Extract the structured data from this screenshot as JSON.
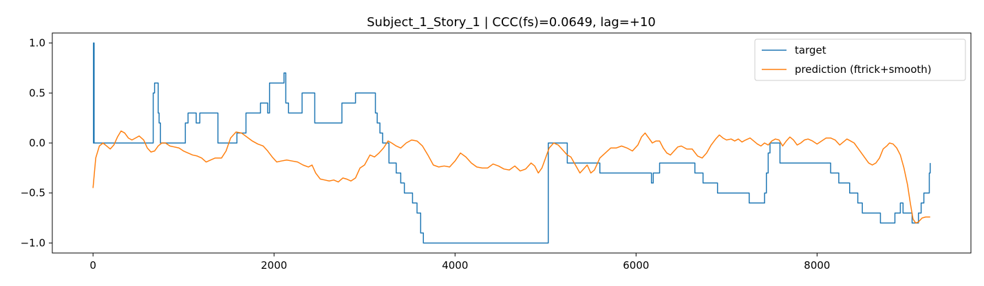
{
  "chart_data": {
    "type": "line",
    "title": "Subject_1_Story_1 | CCC(fs)=0.0649, lag=+10",
    "xlabel": "",
    "ylabel": "",
    "xlim": [
      -450,
      9700
    ],
    "ylim": [
      -1.1,
      1.1
    ],
    "x_ticks": [
      0,
      2000,
      4000,
      6000,
      8000
    ],
    "y_ticks": [
      1.0,
      0.5,
      0.0,
      -0.5,
      -1.0
    ],
    "x_tick_labels": [
      "0",
      "2000",
      "4000",
      "6000",
      "8000"
    ],
    "y_tick_labels": [
      "1.0",
      "0.5",
      "0.0",
      "−0.5",
      "−1.0"
    ],
    "grid": false,
    "legend_position": "top-right",
    "series": [
      {
        "name": "target",
        "color": "#1f77b4",
        "step": true,
        "points": [
          [
            0,
            0.0
          ],
          [
            5,
            1.0
          ],
          [
            12,
            0.0
          ],
          [
            660,
            0.0
          ],
          [
            665,
            0.5
          ],
          [
            680,
            0.6
          ],
          [
            720,
            0.3
          ],
          [
            730,
            0.2
          ],
          [
            745,
            0.0
          ],
          [
            1010,
            0.0
          ],
          [
            1020,
            0.2
          ],
          [
            1050,
            0.3
          ],
          [
            1140,
            0.2
          ],
          [
            1180,
            0.3
          ],
          [
            1380,
            0.0
          ],
          [
            1590,
            0.1
          ],
          [
            1690,
            0.3
          ],
          [
            1850,
            0.4
          ],
          [
            1930,
            0.3
          ],
          [
            1950,
            0.6
          ],
          [
            2110,
            0.7
          ],
          [
            2130,
            0.4
          ],
          [
            2160,
            0.3
          ],
          [
            2310,
            0.5
          ],
          [
            2450,
            0.2
          ],
          [
            2750,
            0.4
          ],
          [
            2900,
            0.5
          ],
          [
            3120,
            0.3
          ],
          [
            3140,
            0.2
          ],
          [
            3170,
            0.1
          ],
          [
            3200,
            0.0
          ],
          [
            3270,
            -0.2
          ],
          [
            3350,
            -0.3
          ],
          [
            3400,
            -0.4
          ],
          [
            3440,
            -0.5
          ],
          [
            3530,
            -0.6
          ],
          [
            3580,
            -0.7
          ],
          [
            3620,
            -0.9
          ],
          [
            3650,
            -1.0
          ],
          [
            5030,
            0.0
          ],
          [
            5240,
            -0.2
          ],
          [
            5600,
            -0.3
          ],
          [
            6170,
            -0.4
          ],
          [
            6190,
            -0.3
          ],
          [
            6260,
            -0.2
          ],
          [
            6650,
            -0.3
          ],
          [
            6740,
            -0.4
          ],
          [
            6900,
            -0.5
          ],
          [
            7250,
            -0.6
          ],
          [
            7420,
            -0.5
          ],
          [
            7440,
            -0.3
          ],
          [
            7460,
            -0.1
          ],
          [
            7480,
            0.0
          ],
          [
            7590,
            -0.2
          ],
          [
            8150,
            -0.3
          ],
          [
            8240,
            -0.4
          ],
          [
            8360,
            -0.5
          ],
          [
            8450,
            -0.6
          ],
          [
            8500,
            -0.7
          ],
          [
            8700,
            -0.8
          ],
          [
            8860,
            -0.7
          ],
          [
            8920,
            -0.6
          ],
          [
            8950,
            -0.7
          ],
          [
            9050,
            -0.8
          ],
          [
            9120,
            -0.7
          ],
          [
            9150,
            -0.6
          ],
          [
            9180,
            -0.5
          ],
          [
            9240,
            -0.3
          ],
          [
            9250,
            -0.2
          ]
        ]
      },
      {
        "name": "prediction (ftrick+smooth)",
        "color": "#ff7f0e",
        "step": false,
        "points": [
          [
            0,
            -0.45
          ],
          [
            30,
            -0.15
          ],
          [
            70,
            -0.03
          ],
          [
            110,
            0.0
          ],
          [
            150,
            -0.03
          ],
          [
            190,
            -0.06
          ],
          [
            230,
            -0.02
          ],
          [
            270,
            0.06
          ],
          [
            310,
            0.12
          ],
          [
            350,
            0.1
          ],
          [
            390,
            0.05
          ],
          [
            430,
            0.03
          ],
          [
            470,
            0.05
          ],
          [
            510,
            0.07
          ],
          [
            560,
            0.03
          ],
          [
            600,
            -0.05
          ],
          [
            640,
            -0.09
          ],
          [
            680,
            -0.08
          ],
          [
            720,
            -0.03
          ],
          [
            760,
            0.0
          ],
          [
            800,
            0.0
          ],
          [
            850,
            -0.03
          ],
          [
            900,
            -0.04
          ],
          [
            950,
            -0.05
          ],
          [
            1000,
            -0.08
          ],
          [
            1050,
            -0.1
          ],
          [
            1100,
            -0.12
          ],
          [
            1150,
            -0.13
          ],
          [
            1200,
            -0.15
          ],
          [
            1250,
            -0.19
          ],
          [
            1300,
            -0.17
          ],
          [
            1350,
            -0.15
          ],
          [
            1420,
            -0.15
          ],
          [
            1470,
            -0.08
          ],
          [
            1520,
            0.05
          ],
          [
            1580,
            0.11
          ],
          [
            1640,
            0.1
          ],
          [
            1700,
            0.06
          ],
          [
            1760,
            0.02
          ],
          [
            1820,
            -0.01
          ],
          [
            1880,
            -0.03
          ],
          [
            1930,
            -0.08
          ],
          [
            1980,
            -0.14
          ],
          [
            2030,
            -0.19
          ],
          [
            2080,
            -0.18
          ],
          [
            2140,
            -0.17
          ],
          [
            2200,
            -0.18
          ],
          [
            2260,
            -0.19
          ],
          [
            2320,
            -0.22
          ],
          [
            2380,
            -0.24
          ],
          [
            2420,
            -0.22
          ],
          [
            2460,
            -0.3
          ],
          [
            2510,
            -0.36
          ],
          [
            2560,
            -0.37
          ],
          [
            2610,
            -0.38
          ],
          [
            2660,
            -0.37
          ],
          [
            2710,
            -0.39
          ],
          [
            2760,
            -0.35
          ],
          [
            2800,
            -0.36
          ],
          [
            2850,
            -0.38
          ],
          [
            2900,
            -0.35
          ],
          [
            2950,
            -0.25
          ],
          [
            3000,
            -0.22
          ],
          [
            3060,
            -0.12
          ],
          [
            3110,
            -0.14
          ],
          [
            3160,
            -0.1
          ],
          [
            3210,
            -0.05
          ],
          [
            3260,
            0.02
          ],
          [
            3300,
            0.0
          ],
          [
            3350,
            -0.03
          ],
          [
            3400,
            -0.05
          ],
          [
            3460,
            0.0
          ],
          [
            3520,
            0.03
          ],
          [
            3580,
            0.02
          ],
          [
            3640,
            -0.03
          ],
          [
            3700,
            -0.12
          ],
          [
            3760,
            -0.22
          ],
          [
            3820,
            -0.24
          ],
          [
            3880,
            -0.23
          ],
          [
            3940,
            -0.24
          ],
          [
            4000,
            -0.18
          ],
          [
            4060,
            -0.1
          ],
          [
            4120,
            -0.14
          ],
          [
            4180,
            -0.2
          ],
          [
            4240,
            -0.24
          ],
          [
            4300,
            -0.25
          ],
          [
            4360,
            -0.25
          ],
          [
            4420,
            -0.21
          ],
          [
            4480,
            -0.23
          ],
          [
            4540,
            -0.26
          ],
          [
            4600,
            -0.27
          ],
          [
            4660,
            -0.23
          ],
          [
            4720,
            -0.28
          ],
          [
            4780,
            -0.26
          ],
          [
            4840,
            -0.2
          ],
          [
            4880,
            -0.23
          ],
          [
            4920,
            -0.3
          ],
          [
            4960,
            -0.25
          ],
          [
            5000,
            -0.15
          ],
          [
            5040,
            -0.05
          ],
          [
            5090,
            0.0
          ],
          [
            5140,
            -0.02
          ],
          [
            5190,
            -0.07
          ],
          [
            5240,
            -0.12
          ],
          [
            5280,
            -0.14
          ],
          [
            5330,
            -0.22
          ],
          [
            5380,
            -0.3
          ],
          [
            5420,
            -0.26
          ],
          [
            5460,
            -0.22
          ],
          [
            5500,
            -0.3
          ],
          [
            5540,
            -0.27
          ],
          [
            5600,
            -0.15
          ],
          [
            5660,
            -0.1
          ],
          [
            5720,
            -0.05
          ],
          [
            5780,
            -0.05
          ],
          [
            5840,
            -0.03
          ],
          [
            5900,
            -0.05
          ],
          [
            5960,
            -0.08
          ],
          [
            6020,
            -0.02
          ],
          [
            6060,
            0.06
          ],
          [
            6100,
            0.1
          ],
          [
            6140,
            0.05
          ],
          [
            6180,
            0.0
          ],
          [
            6220,
            0.02
          ],
          [
            6260,
            0.02
          ],
          [
            6300,
            -0.05
          ],
          [
            6340,
            -0.1
          ],
          [
            6380,
            -0.12
          ],
          [
            6420,
            -0.08
          ],
          [
            6460,
            -0.04
          ],
          [
            6500,
            -0.03
          ],
          [
            6560,
            -0.06
          ],
          [
            6620,
            -0.06
          ],
          [
            6680,
            -0.13
          ],
          [
            6730,
            -0.15
          ],
          [
            6780,
            -0.1
          ],
          [
            6830,
            -0.02
          ],
          [
            6880,
            0.04
          ],
          [
            6920,
            0.08
          ],
          [
            6960,
            0.05
          ],
          [
            7000,
            0.03
          ],
          [
            7050,
            0.04
          ],
          [
            7090,
            0.02
          ],
          [
            7130,
            0.04
          ],
          [
            7170,
            0.01
          ],
          [
            7210,
            0.03
          ],
          [
            7260,
            0.05
          ],
          [
            7300,
            0.02
          ],
          [
            7340,
            -0.01
          ],
          [
            7380,
            -0.03
          ],
          [
            7420,
            0.0
          ],
          [
            7460,
            -0.02
          ],
          [
            7500,
            0.02
          ],
          [
            7540,
            0.04
          ],
          [
            7580,
            0.03
          ],
          [
            7620,
            -0.03
          ],
          [
            7660,
            0.02
          ],
          [
            7700,
            0.06
          ],
          [
            7740,
            0.03
          ],
          [
            7780,
            -0.02
          ],
          [
            7820,
            0.0
          ],
          [
            7860,
            0.03
          ],
          [
            7900,
            0.04
          ],
          [
            7950,
            0.02
          ],
          [
            8000,
            -0.01
          ],
          [
            8050,
            0.02
          ],
          [
            8100,
            0.05
          ],
          [
            8150,
            0.05
          ],
          [
            8200,
            0.03
          ],
          [
            8250,
            -0.02
          ],
          [
            8290,
            0.01
          ],
          [
            8330,
            0.04
          ],
          [
            8370,
            0.02
          ],
          [
            8410,
            0.0
          ],
          [
            8450,
            -0.05
          ],
          [
            8490,
            -0.1
          ],
          [
            8530,
            -0.15
          ],
          [
            8570,
            -0.2
          ],
          [
            8610,
            -0.22
          ],
          [
            8650,
            -0.2
          ],
          [
            8690,
            -0.15
          ],
          [
            8730,
            -0.06
          ],
          [
            8770,
            -0.03
          ],
          [
            8800,
            0.0
          ],
          [
            8840,
            -0.01
          ],
          [
            8880,
            -0.05
          ],
          [
            8920,
            -0.12
          ],
          [
            8960,
            -0.25
          ],
          [
            9000,
            -0.42
          ],
          [
            9030,
            -0.6
          ],
          [
            9060,
            -0.76
          ],
          [
            9090,
            -0.8
          ],
          [
            9120,
            -0.79
          ],
          [
            9160,
            -0.75
          ],
          [
            9200,
            -0.74
          ],
          [
            9250,
            -0.74
          ]
        ]
      }
    ]
  }
}
